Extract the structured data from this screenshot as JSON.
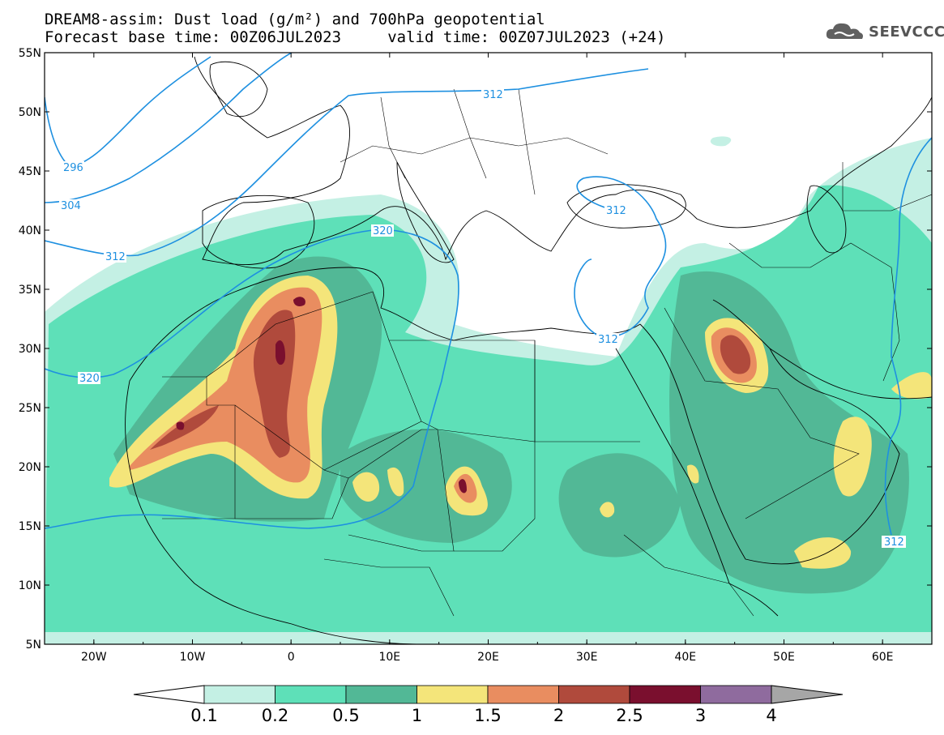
{
  "title": {
    "line1": "DREAM8-assim: Dust load (g/m²) and 700hPa geopotential",
    "line2": "Forecast base time: 00Z06JUL2023     valid time: 00Z07JUL2023 (+24)"
  },
  "logo": {
    "text": "SEEVCCC",
    "icon": "cloud-icon"
  },
  "map": {
    "lat_labels": [
      "55N",
      "50N",
      "45N",
      "40N",
      "35N",
      "30N",
      "25N",
      "20N",
      "15N",
      "10N",
      "5N"
    ],
    "lon_labels": [
      "20W",
      "10W",
      "0",
      "10E",
      "20E",
      "30E",
      "40E",
      "50E",
      "60E"
    ],
    "lat_range": [
      5,
      55
    ],
    "lon_range": [
      -25,
      65
    ],
    "contour_labels": [
      "296",
      "304",
      "312",
      "320",
      "312",
      "312",
      "312",
      "320",
      "312"
    ]
  },
  "colorbar": {
    "ticks": [
      "0.1",
      "0.2",
      "0.5",
      "1",
      "1.5",
      "2",
      "2.5",
      "3",
      "4"
    ],
    "colors": [
      "#c4f0e4",
      "#5ee0b8",
      "#52b896",
      "#f4e57a",
      "#e98d60",
      "#b04a3c",
      "#7a0f2e",
      "#8f6b9e",
      "#a6a6a6"
    ]
  }
}
